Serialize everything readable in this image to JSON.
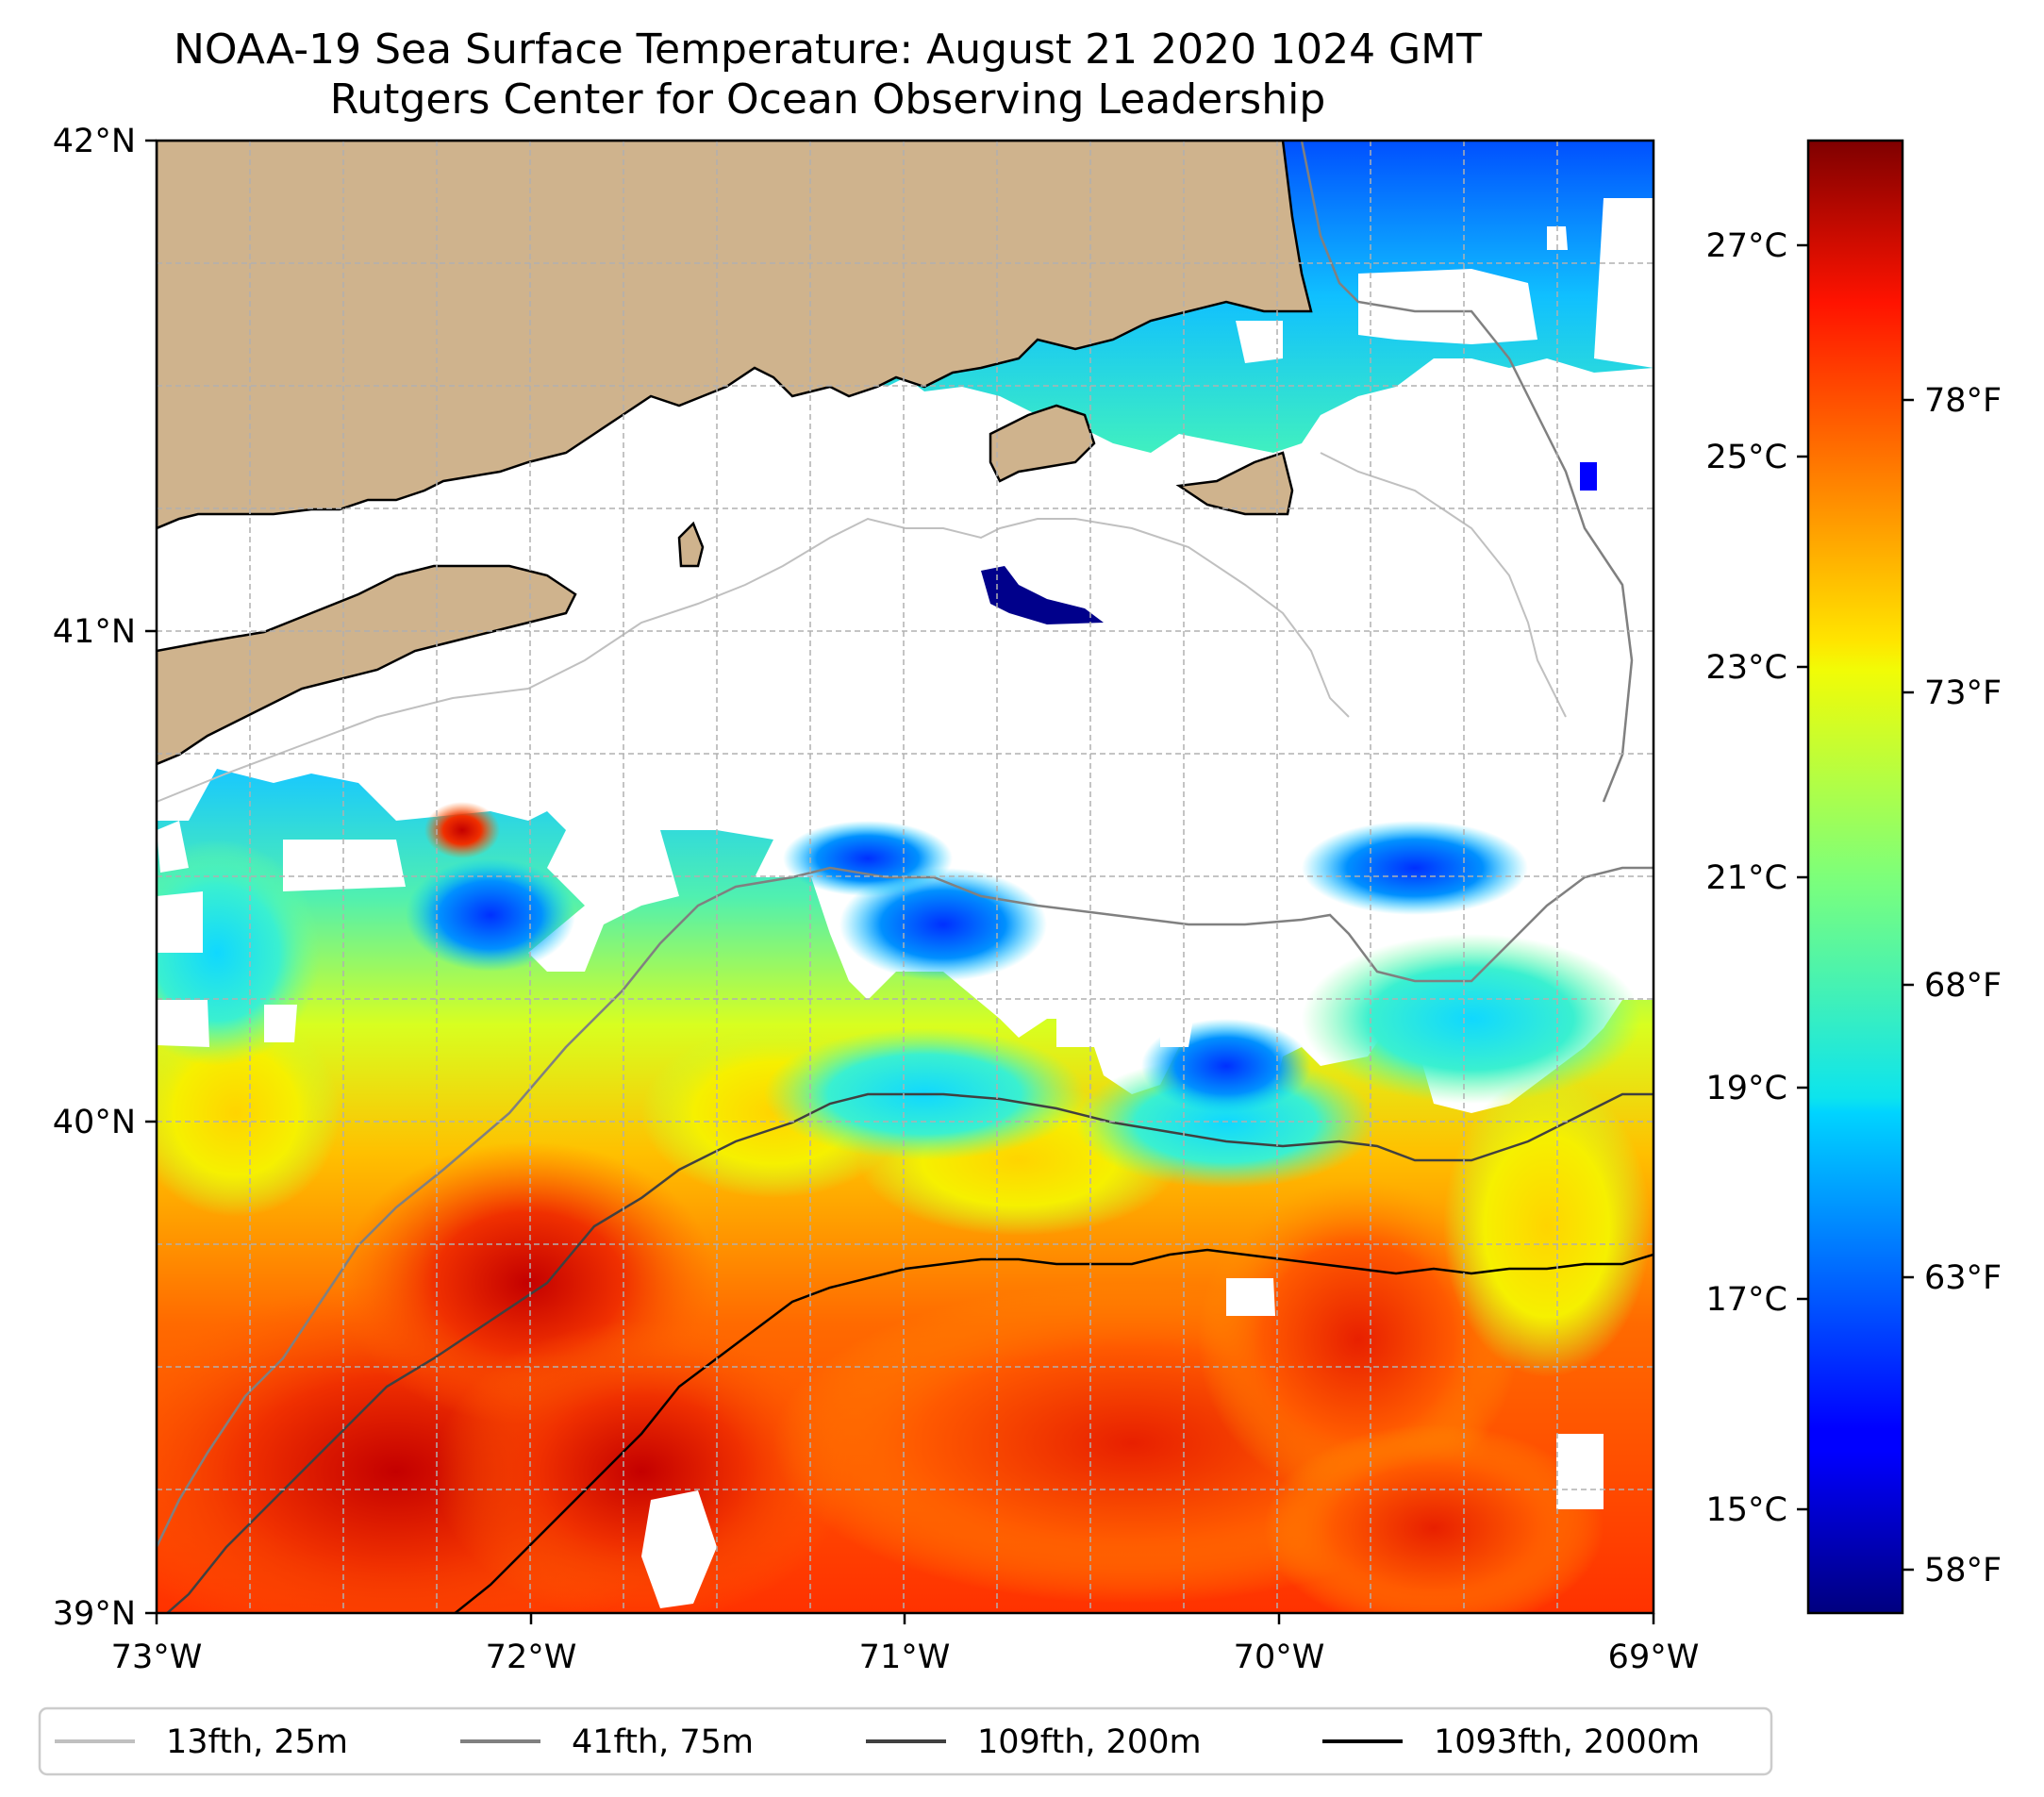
{
  "title": "NOAA-19 Sea Surface Temperature: August 21 2020 1024 GMT",
  "subtitle": "Rutgers Center for Ocean Observing Leadership",
  "map": {
    "lon_range": [
      -73,
      -69
    ],
    "lat_range": [
      39,
      42
    ],
    "x_tick_labels": [
      "73°W",
      "72°W",
      "71°W",
      "70°W",
      "69°W"
    ],
    "y_tick_labels": [
      "42°N",
      "41°N",
      "40°N",
      "39°N"
    ],
    "grid": true,
    "land_color": "#cfb38d"
  },
  "colorbar": {
    "colormap": "jet",
    "celsius_labels": [
      "27°C",
      "25°C",
      "23°C",
      "21°C",
      "19°C",
      "17°C",
      "15°C"
    ],
    "fahrenheit_labels": [
      "78°F",
      "73°F",
      "68°F",
      "63°F",
      "58°F"
    ]
  },
  "legend": {
    "placement": "bottom",
    "entries": [
      {
        "label": "13fth, 25m",
        "color": "#c0c0c0"
      },
      {
        "label": "41fth, 75m",
        "color": "#808080"
      },
      {
        "label": "109fth, 200m",
        "color": "#404040"
      },
      {
        "label": "1093fth, 2000m",
        "color": "#000000"
      }
    ]
  }
}
